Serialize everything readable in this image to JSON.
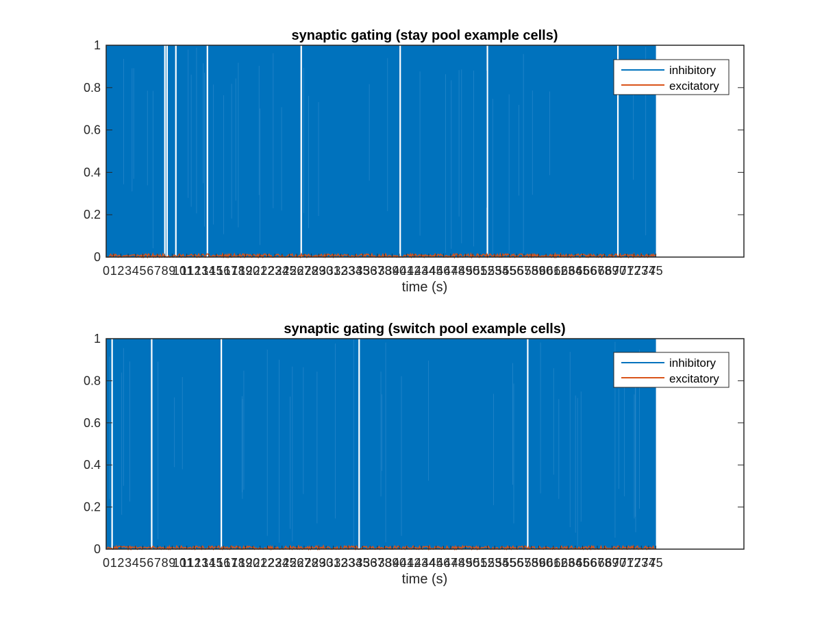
{
  "chart_data": [
    {
      "type": "line",
      "title": "synaptic gating (stay pool example cells)",
      "xlabel": "time (s)",
      "ylabel": "",
      "ylim": [
        0,
        1
      ],
      "yticks": [
        0,
        0.2,
        0.4,
        0.6,
        0.8,
        1
      ],
      "ytick_labels": [
        "0",
        "0.2",
        "0.4",
        "0.6",
        "0.8",
        "1"
      ],
      "xticks": [
        0,
        1,
        2,
        3,
        4,
        5,
        6,
        7,
        8,
        9,
        10,
        11,
        12,
        13,
        14,
        15,
        16,
        17,
        18,
        19,
        20,
        21,
        22,
        23,
        24,
        25,
        26,
        27,
        28,
        29,
        30,
        31,
        32,
        33,
        34,
        35,
        36,
        37,
        38,
        39,
        40,
        41,
        42,
        43,
        44,
        45,
        46,
        47,
        48,
        49,
        50,
        51,
        52,
        53,
        54,
        55,
        56,
        57,
        58,
        59,
        60,
        61,
        62,
        63,
        64,
        65,
        66,
        67,
        68,
        69,
        70,
        71,
        72,
        73,
        74,
        75
      ],
      "xtick_labels": [
        "0",
        "1",
        "2",
        "3",
        "4",
        "5",
        "6",
        "7",
        "8",
        "9",
        "10",
        "11",
        "12",
        "13",
        "14",
        "15",
        "16",
        "17",
        "18",
        "19",
        "20",
        "21",
        "22",
        "23",
        "24",
        "25",
        "26",
        "27",
        "28",
        "29",
        "30",
        "31",
        "32",
        "33",
        "34",
        "35",
        "36",
        "37",
        "38",
        "39",
        "40",
        "41",
        "42",
        "43",
        "44",
        "45",
        "46",
        "47",
        "48",
        "49",
        "50",
        "51",
        "52",
        "53",
        "54",
        "55",
        "56",
        "57",
        "58",
        "59",
        "60",
        "61",
        "62",
        "63",
        "64",
        "65",
        "66",
        "67",
        "68",
        "69",
        "70",
        "71",
        "72",
        "73",
        "74",
        "75"
      ],
      "xlim": [
        0,
        87
      ],
      "data_extent_x": [
        0,
        75
      ],
      "grid": false,
      "legend_position": "top-right",
      "series": [
        {
          "name": "inhibitory",
          "color": "#0072BD",
          "description_values": "dense oscillation between 0 and 1 across 0–75 s",
          "y_min": 0,
          "y_max": 1,
          "gaps_x": [
            8.0,
            8.3,
            9.5,
            13.8,
            26.6,
            40.1,
            52.0,
            69.8
          ]
        },
        {
          "name": "excitatory",
          "color": "#D95319",
          "y_min": 0,
          "y_max": 0.02,
          "mean": 0.006
        }
      ]
    },
    {
      "type": "line",
      "title": "synaptic gating (switch pool example cells)",
      "xlabel": "time (s)",
      "ylabel": "",
      "ylim": [
        0,
        1
      ],
      "yticks": [
        0,
        0.2,
        0.4,
        0.6,
        0.8,
        1
      ],
      "ytick_labels": [
        "0",
        "0.2",
        "0.4",
        "0.6",
        "0.8",
        "1"
      ],
      "xticks": [
        0,
        1,
        2,
        3,
        4,
        5,
        6,
        7,
        8,
        9,
        10,
        11,
        12,
        13,
        14,
        15,
        16,
        17,
        18,
        19,
        20,
        21,
        22,
        23,
        24,
        25,
        26,
        27,
        28,
        29,
        30,
        31,
        32,
        33,
        34,
        35,
        36,
        37,
        38,
        39,
        40,
        41,
        42,
        43,
        44,
        45,
        46,
        47,
        48,
        49,
        50,
        51,
        52,
        53,
        54,
        55,
        56,
        57,
        58,
        59,
        60,
        61,
        62,
        63,
        64,
        65,
        66,
        67,
        68,
        69,
        70,
        71,
        72,
        73,
        74,
        75
      ],
      "xtick_labels": [
        "0",
        "1",
        "2",
        "3",
        "4",
        "5",
        "6",
        "7",
        "8",
        "9",
        "10",
        "11",
        "12",
        "13",
        "14",
        "15",
        "16",
        "17",
        "18",
        "19",
        "20",
        "21",
        "22",
        "23",
        "24",
        "25",
        "26",
        "27",
        "28",
        "29",
        "30",
        "31",
        "32",
        "33",
        "34",
        "35",
        "36",
        "37",
        "38",
        "39",
        "40",
        "41",
        "42",
        "43",
        "44",
        "45",
        "46",
        "47",
        "48",
        "49",
        "50",
        "51",
        "52",
        "53",
        "54",
        "55",
        "56",
        "57",
        "58",
        "59",
        "60",
        "61",
        "62",
        "63",
        "64",
        "65",
        "66",
        "67",
        "68",
        "69",
        "70",
        "71",
        "72",
        "73",
        "74",
        "75"
      ],
      "xlim": [
        0,
        87
      ],
      "data_extent_x": [
        0,
        75
      ],
      "grid": false,
      "legend_position": "top-right",
      "series": [
        {
          "name": "inhibitory",
          "color": "#0072BD",
          "y_min": 0,
          "y_max": 1,
          "gaps_x": [
            0.8,
            6.2,
            15.7,
            34.5,
            57.5
          ]
        },
        {
          "name": "excitatory",
          "color": "#D95319",
          "y_min": 0,
          "y_max": 0.02,
          "mean": 0.006
        }
      ]
    }
  ]
}
